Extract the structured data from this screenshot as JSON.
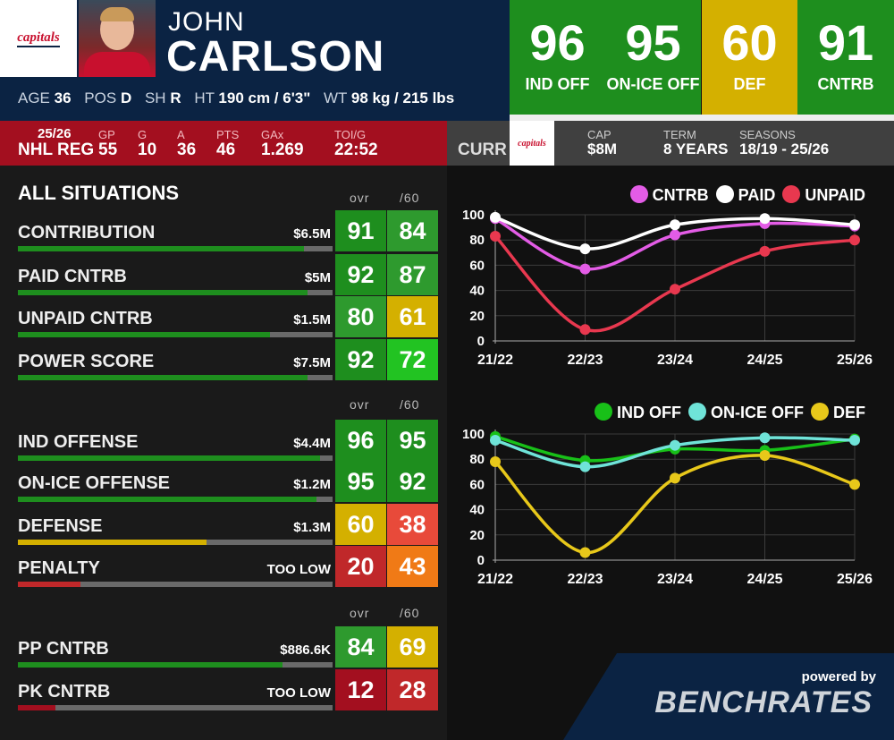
{
  "header": {
    "team_logo_text": "capitals",
    "first_name": "JOHN",
    "last_name": "CARLSON",
    "bio": {
      "age_label": "AGE",
      "age": "36",
      "pos_label": "POS",
      "pos": "D",
      "sh_label": "SH",
      "sh": "R",
      "ht_label": "HT",
      "ht": "190 cm / 6'3\"",
      "wt_label": "WT",
      "wt": "98 kg / 215 lbs"
    }
  },
  "top_ratings": [
    {
      "value": "96",
      "label": "IND OFF",
      "color": "#1e8e1e"
    },
    {
      "value": "95",
      "label": "ON-ICE OFF",
      "color": "#1e8e1e"
    },
    {
      "value": "60",
      "label": "DEF",
      "color": "#d4b000"
    },
    {
      "value": "91",
      "label": "CNTRB",
      "color": "#1e8e1e"
    }
  ],
  "season": {
    "season": "25/26",
    "league": "NHL REG",
    "gp_label": "GP",
    "gp": "55",
    "g_label": "G",
    "g": "10",
    "a_label": "A",
    "a": "36",
    "pts_label": "PTS",
    "pts": "46",
    "gax_label": "GAx",
    "gax": "1.269",
    "toi_label": "TOI/G",
    "toi": "22:52"
  },
  "contract": {
    "curr_label": "CURR",
    "logo_text": "capitals",
    "cap_label": "CAP",
    "cap": "$8M",
    "term_label": "TERM",
    "term": "8 YEARS",
    "seasons_label": "SEASONS",
    "seasons": "18/19 - 25/26"
  },
  "section": {
    "title": "ALL SITUATIONS",
    "col_ovr": "ovr",
    "col_60": "/60"
  },
  "rows": [
    {
      "label": "CONTRIBUTION",
      "money": "$6.5M",
      "bar_pct": 91,
      "bar_color": "#1e8e1e",
      "ovr": "91",
      "ovr_color": "#1e8e1e",
      "p60": "84",
      "p60_color": "#2e9a2e"
    },
    {
      "label": "PAID CNTRB",
      "money": "$5M",
      "bar_pct": 92,
      "bar_color": "#1e8e1e",
      "ovr": "92",
      "ovr_color": "#1e8e1e",
      "p60": "87",
      "p60_color": "#2e9a2e"
    },
    {
      "label": "UNPAID CNTRB",
      "money": "$1.5M",
      "bar_pct": 80,
      "bar_color": "#1e8e1e",
      "ovr": "80",
      "ovr_color": "#2e9a2e",
      "p60": "61",
      "p60_color": "#d4b000"
    },
    {
      "label": "POWER SCORE",
      "money": "$7.5M",
      "bar_pct": 92,
      "bar_color": "#1e8e1e",
      "ovr": "92",
      "ovr_color": "#1e8e1e",
      "p60": "72",
      "p60_color": "#22c322"
    },
    {
      "label": "IND OFFENSE",
      "money": "$4.4M",
      "bar_pct": 96,
      "bar_color": "#1e8e1e",
      "ovr": "96",
      "ovr_color": "#1e8e1e",
      "p60": "95",
      "p60_color": "#1e8e1e"
    },
    {
      "label": "ON-ICE OFFENSE",
      "money": "$1.2M",
      "bar_pct": 95,
      "bar_color": "#1e8e1e",
      "ovr": "95",
      "ovr_color": "#1e8e1e",
      "p60": "92",
      "p60_color": "#1e8e1e"
    },
    {
      "label": "DEFENSE",
      "money": "$1.3M",
      "bar_pct": 60,
      "bar_color": "#d4b000",
      "ovr": "60",
      "ovr_color": "#d4b000",
      "p60": "38",
      "p60_color": "#e84a3a"
    },
    {
      "label": "PENALTY",
      "money": "TOO LOW",
      "bar_pct": 20,
      "bar_color": "#c0282a",
      "ovr": "20",
      "ovr_color": "#c0282a",
      "p60": "43",
      "p60_color": "#f07a16"
    },
    {
      "label": "PP CNTRB",
      "money": "$886.6K",
      "bar_pct": 84,
      "bar_color": "#1e8e1e",
      "ovr": "84",
      "ovr_color": "#2e9a2e",
      "p60": "69",
      "p60_color": "#d4b000"
    },
    {
      "label": "PK CNTRB",
      "money": "TOO LOW",
      "bar_pct": 12,
      "bar_color": "#a30f1f",
      "ovr": "12",
      "ovr_color": "#a30f1f",
      "p60": "28",
      "p60_color": "#c0282a"
    }
  ],
  "chart_data": [
    {
      "type": "line",
      "x": [
        "21/22",
        "22/23",
        "23/24",
        "24/25",
        "25/26"
      ],
      "ylim": [
        0,
        100
      ],
      "yticks": [
        0,
        20,
        40,
        60,
        80,
        100
      ],
      "legend_position": "top-right",
      "grid": true,
      "series": [
        {
          "name": "CNTRB",
          "color": "#e35ce6",
          "values": [
            97,
            57,
            84,
            93,
            91
          ]
        },
        {
          "name": "PAID",
          "color": "#ffffff",
          "values": [
            98,
            73,
            92,
            97,
            92
          ]
        },
        {
          "name": "UNPAID",
          "color": "#e8384f",
          "values": [
            83,
            9,
            41,
            71,
            80
          ]
        }
      ]
    },
    {
      "type": "line",
      "x": [
        "21/22",
        "22/23",
        "23/24",
        "24/25",
        "25/26"
      ],
      "ylim": [
        0,
        100
      ],
      "yticks": [
        0,
        20,
        40,
        60,
        80,
        100
      ],
      "legend_position": "top-right",
      "grid": true,
      "series": [
        {
          "name": "IND OFF",
          "color": "#18c018",
          "values": [
            98,
            79,
            88,
            87,
            96
          ]
        },
        {
          "name": "ON-ICE OFF",
          "color": "#6fe3d8",
          "values": [
            95,
            74,
            91,
            97,
            95
          ]
        },
        {
          "name": "DEF",
          "color": "#e8c81a",
          "values": [
            78,
            6,
            65,
            83,
            60
          ]
        }
      ]
    }
  ],
  "footer": {
    "powered": "powered by",
    "brand": "BENCHRATES"
  }
}
